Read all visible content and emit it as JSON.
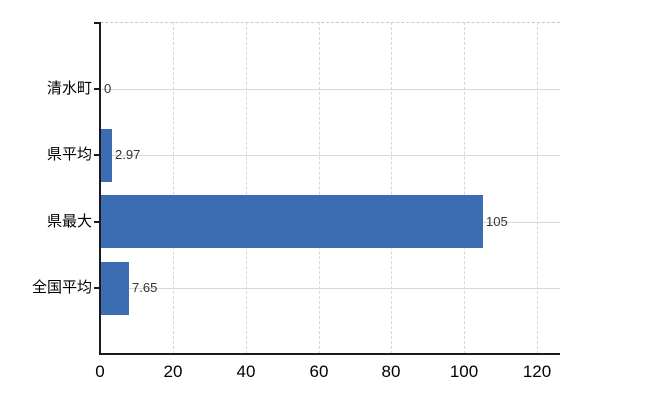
{
  "chart_data": {
    "type": "bar",
    "orientation": "horizontal",
    "title": "",
    "xlabel": "",
    "ylabel": "",
    "categories": [
      "清水町",
      "県平均",
      "県最大",
      "全国平均"
    ],
    "values": [
      0,
      2.97,
      105,
      7.65
    ],
    "value_labels": [
      "0",
      "2.97",
      "105",
      "7.65"
    ],
    "x_ticks": [
      0,
      20,
      40,
      60,
      80,
      100,
      120
    ],
    "x_tick_labels": [
      "0",
      "20",
      "40",
      "60",
      "80",
      "100",
      "120"
    ],
    "xlim": [
      0,
      126.3
    ],
    "grid": true,
    "legend": false,
    "colors": {
      "bar_fill": "#3c6cb2",
      "gridline": "#d7d7d7",
      "plot_top_border": "#c9c9c9",
      "axis": "#1a1a1a",
      "category_text": "#000000",
      "value_text": "#333333",
      "tick_text": "#000000",
      "background": "#ffffff"
    }
  }
}
